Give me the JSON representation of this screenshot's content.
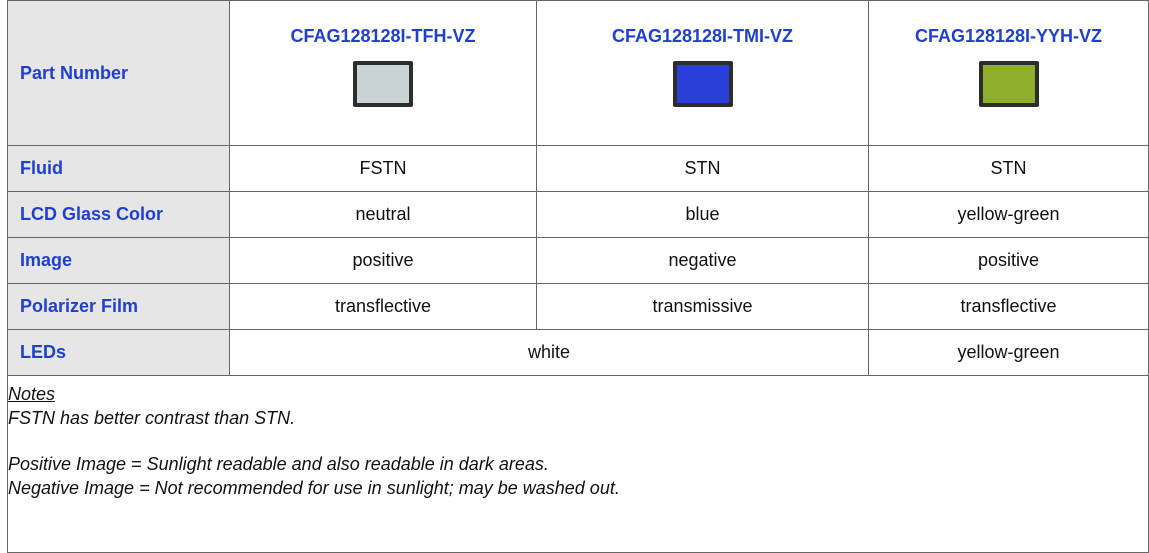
{
  "table": {
    "header": {
      "label": "Part Number",
      "parts": [
        "CFAG128128I-TFH-VZ",
        "CFAG128128I-TMI-VZ",
        "CFAG128128I-YYH-VZ"
      ]
    },
    "rows": [
      {
        "label": "Fluid",
        "cells": [
          "FSTN",
          "STN",
          "STN"
        ]
      },
      {
        "label": "LCD Glass Color",
        "cells": [
          "neutral",
          "blue",
          "yellow-green"
        ]
      },
      {
        "label": "Image",
        "cells": [
          "positive",
          "negative",
          "positive"
        ]
      },
      {
        "label": "Polarizer Film",
        "cells": [
          "transflective",
          "transmissive",
          "transflective"
        ]
      },
      {
        "label": "LEDs",
        "cells": [
          "white",
          "yellow-green"
        ]
      }
    ]
  },
  "notes": {
    "title": "Notes",
    "lines": [
      "FSTN has better contrast than STN.",
      "Positive Image = Sunlight readable and also readable in dark areas.",
      "Negative Image = Not recommended for use in sunlight; may be washed out."
    ]
  }
}
